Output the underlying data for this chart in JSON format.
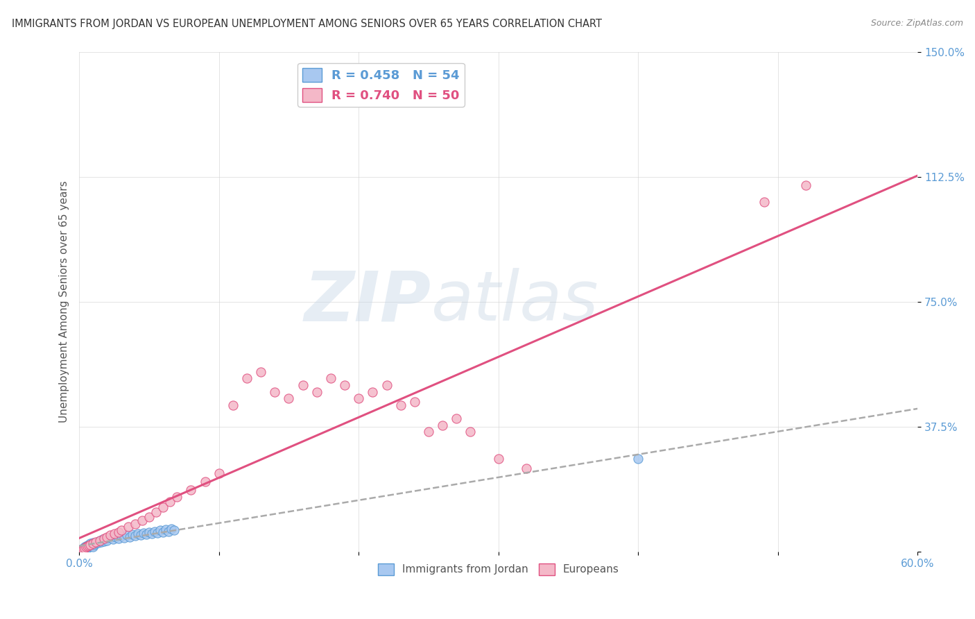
{
  "title": "IMMIGRANTS FROM JORDAN VS EUROPEAN UNEMPLOYMENT AMONG SENIORS OVER 65 YEARS CORRELATION CHART",
  "source": "Source: ZipAtlas.com",
  "ylabel": "Unemployment Among Seniors over 65 years",
  "xlim": [
    0.0,
    0.6
  ],
  "ylim": [
    0.0,
    1.5
  ],
  "xticks": [
    0.0,
    0.1,
    0.2,
    0.3,
    0.4,
    0.5,
    0.6
  ],
  "xticklabels": [
    "0.0%",
    "",
    "",
    "",
    "",
    "",
    "60.0%"
  ],
  "yticks": [
    0.0,
    0.375,
    0.75,
    1.125,
    1.5
  ],
  "yticklabels": [
    "",
    "37.5%",
    "75.0%",
    "112.5%",
    "150.0%"
  ],
  "blue_color": "#a8c8f0",
  "blue_edge": "#5b9bd5",
  "pink_color": "#f4b8c8",
  "pink_edge": "#e05080",
  "trend_blue_color": "#aaaaaa",
  "trend_pink_color": "#e05080",
  "R_blue": 0.458,
  "N_blue": 54,
  "R_pink": 0.74,
  "N_pink": 50,
  "blue_scatter_x": [
    0.001,
    0.002,
    0.002,
    0.003,
    0.003,
    0.003,
    0.004,
    0.004,
    0.005,
    0.005,
    0.006,
    0.006,
    0.007,
    0.007,
    0.008,
    0.008,
    0.009,
    0.01,
    0.01,
    0.011,
    0.012,
    0.013,
    0.014,
    0.015,
    0.016,
    0.017,
    0.018,
    0.019,
    0.02,
    0.022,
    0.024,
    0.026,
    0.028,
    0.03,
    0.032,
    0.034,
    0.036,
    0.038,
    0.04,
    0.042,
    0.044,
    0.046,
    0.048,
    0.05,
    0.052,
    0.054,
    0.056,
    0.058,
    0.06,
    0.062,
    0.064,
    0.066,
    0.068,
    0.4
  ],
  "blue_scatter_y": [
    0.005,
    0.008,
    0.01,
    0.005,
    0.012,
    0.007,
    0.009,
    0.015,
    0.01,
    0.018,
    0.012,
    0.02,
    0.015,
    0.022,
    0.018,
    0.025,
    0.02,
    0.015,
    0.028,
    0.022,
    0.025,
    0.03,
    0.028,
    0.035,
    0.03,
    0.038,
    0.032,
    0.04,
    0.035,
    0.042,
    0.038,
    0.045,
    0.04,
    0.048,
    0.042,
    0.05,
    0.045,
    0.052,
    0.048,
    0.055,
    0.05,
    0.058,
    0.052,
    0.06,
    0.055,
    0.062,
    0.058,
    0.065,
    0.06,
    0.068,
    0.062,
    0.07,
    0.065,
    0.28
  ],
  "pink_scatter_x": [
    0.001,
    0.002,
    0.003,
    0.004,
    0.005,
    0.006,
    0.007,
    0.008,
    0.01,
    0.012,
    0.015,
    0.018,
    0.02,
    0.022,
    0.025,
    0.028,
    0.03,
    0.035,
    0.04,
    0.045,
    0.05,
    0.055,
    0.06,
    0.065,
    0.07,
    0.08,
    0.09,
    0.1,
    0.11,
    0.12,
    0.13,
    0.14,
    0.15,
    0.16,
    0.17,
    0.18,
    0.19,
    0.2,
    0.21,
    0.22,
    0.23,
    0.24,
    0.25,
    0.26,
    0.27,
    0.28,
    0.3,
    0.32,
    0.49,
    0.52
  ],
  "pink_scatter_y": [
    0.005,
    0.008,
    0.01,
    0.012,
    0.015,
    0.018,
    0.02,
    0.022,
    0.025,
    0.03,
    0.035,
    0.04,
    0.045,
    0.05,
    0.055,
    0.06,
    0.065,
    0.075,
    0.085,
    0.095,
    0.105,
    0.12,
    0.135,
    0.15,
    0.165,
    0.185,
    0.21,
    0.235,
    0.44,
    0.52,
    0.54,
    0.48,
    0.46,
    0.5,
    0.48,
    0.52,
    0.5,
    0.46,
    0.48,
    0.5,
    0.44,
    0.45,
    0.36,
    0.38,
    0.4,
    0.36,
    0.28,
    0.25,
    1.05,
    1.1
  ],
  "watermark_zip": "ZIP",
  "watermark_atlas": "atlas",
  "background_color": "#ffffff",
  "grid_color": "#d0d0d0",
  "tick_color": "#5b9bd5",
  "ylabel_color": "#555555",
  "title_color": "#333333",
  "source_color": "#888888"
}
